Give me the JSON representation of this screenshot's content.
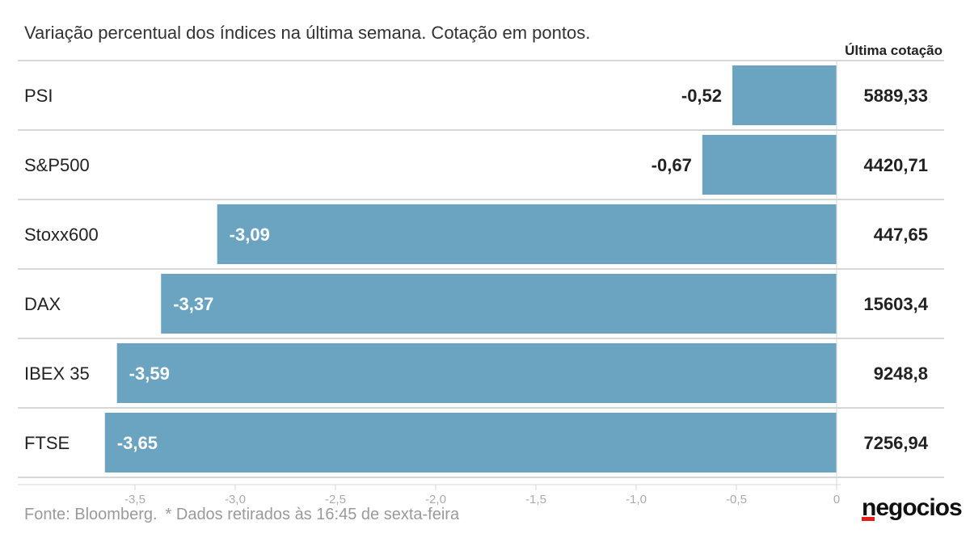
{
  "header": {
    "subtitle": "Variação percentual dos índices na última semana. Cotação em pontos.",
    "quote_header": "Última cotação"
  },
  "footer": {
    "source": "Fonte: Bloomberg.",
    "note": "* Dados retirados às 16:45 de sexta-feira",
    "logo": "negocios"
  },
  "colors": {
    "bar": "#6ba4c0",
    "grid": "#d6d6d6",
    "axis_text": "#aaaaaa",
    "label_dark": "#222222",
    "label_light": "#ffffff",
    "logo_accent": "#e31d1a"
  },
  "chart_data": {
    "type": "bar",
    "orientation": "horizontal",
    "categories": [
      "PSI",
      "S&P500",
      "Stoxx600",
      "DAX",
      "IBEX 35",
      "FTSE"
    ],
    "values": [
      -0.52,
      -0.67,
      -3.09,
      -3.37,
      -3.59,
      -3.65
    ],
    "value_labels": [
      "-0,52",
      "-0,67",
      "-3,09",
      "-3,37",
      "-3,59",
      "-3,65"
    ],
    "quotes": [
      "5889,33",
      "4420,71",
      "447,65",
      "15603,4",
      "9248,8",
      "7256,94"
    ],
    "quote_header": "Última cotação",
    "x_ticks": [
      -3.5,
      -3.0,
      -2.5,
      -2.0,
      -1.5,
      -1.0,
      -0.5,
      0
    ],
    "x_tick_labels": [
      "-3,5",
      "-3,0",
      "-2,5",
      "-2,0",
      "-1,5",
      "-1,0",
      "-0,5",
      "0"
    ],
    "xlim": [
      -3.87,
      0
    ],
    "grid": false,
    "legend": "none"
  }
}
